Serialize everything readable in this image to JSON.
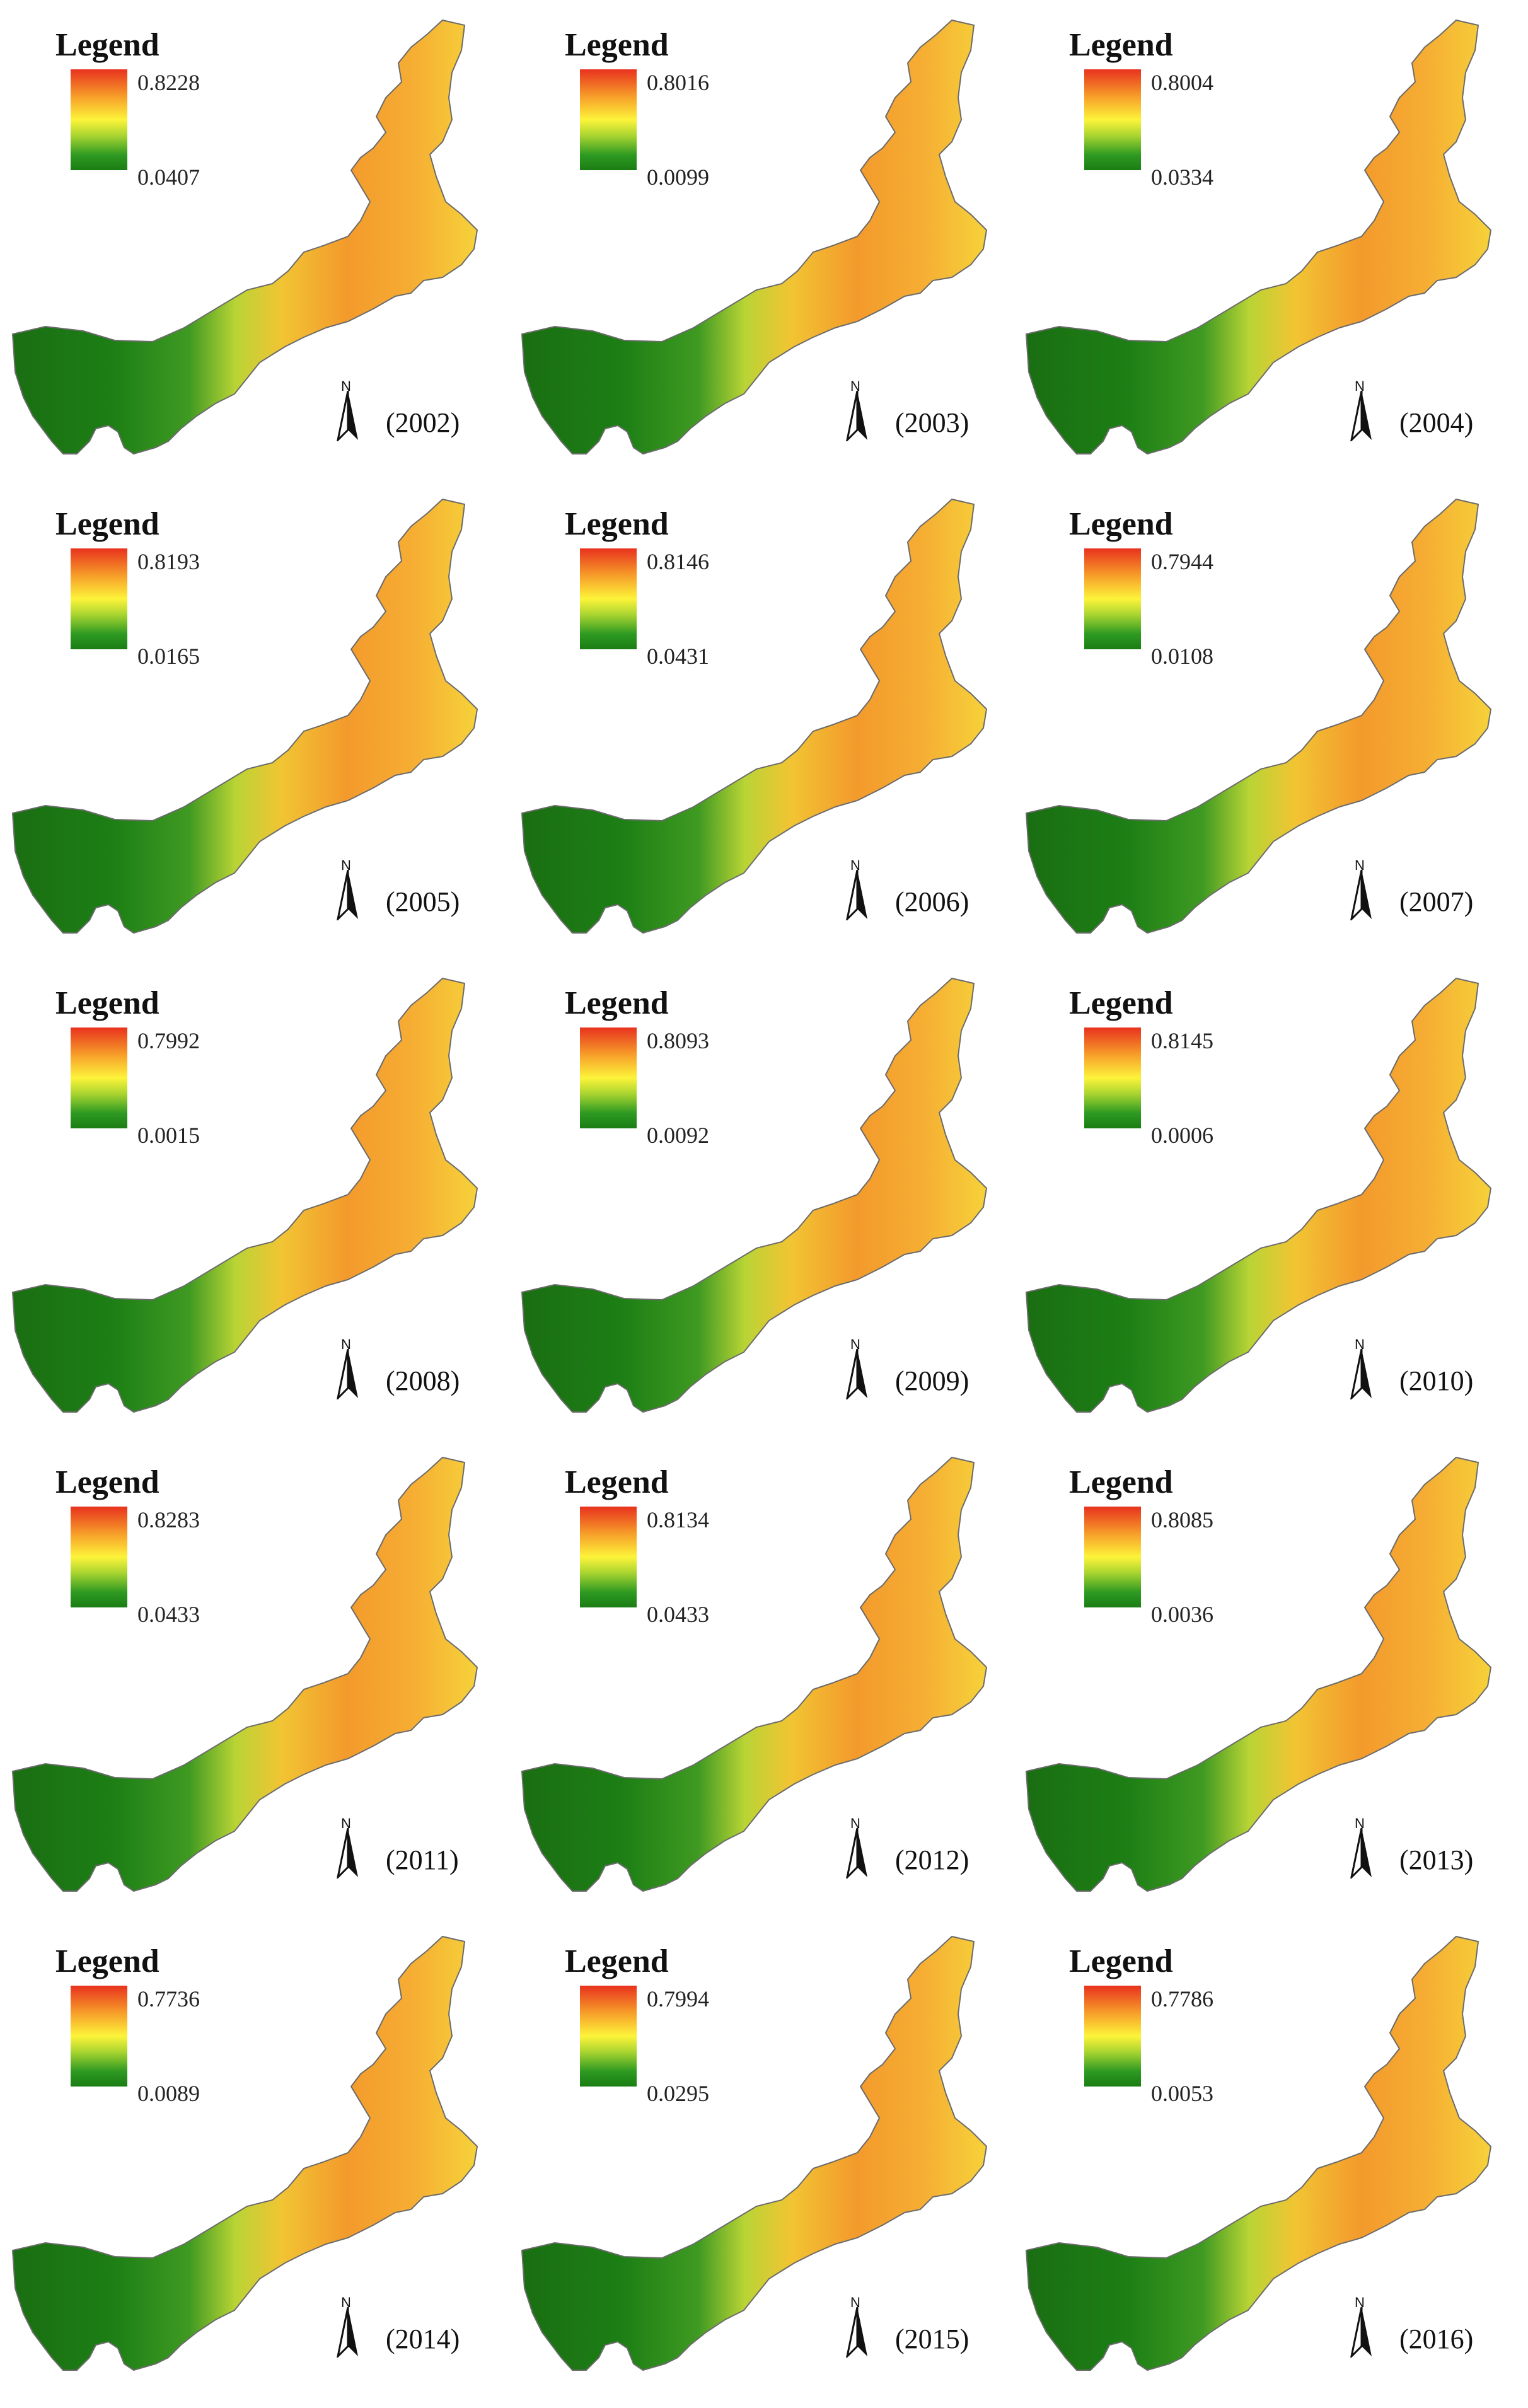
{
  "legend_title": "Legend",
  "colors": {
    "high": "#e8321e",
    "mid_high": "#f7a22a",
    "mid": "#fdf43a",
    "mid_low": "#a8d430",
    "low": "#1a7d14",
    "border": "#6b6b6b"
  },
  "north_label": "N",
  "panels": [
    {
      "year": "(2002)",
      "max": "0.8228",
      "min": "0.0407"
    },
    {
      "year": "(2003)",
      "max": "0.8016",
      "min": "0.0099"
    },
    {
      "year": "(2004)",
      "max": "0.8004",
      "min": "0.0334"
    },
    {
      "year": "(2005)",
      "max": "0.8193",
      "min": "0.0165"
    },
    {
      "year": "(2006)",
      "max": "0.8146",
      "min": "0.0431"
    },
    {
      "year": "(2007)",
      "max": "0.7944",
      "min": "0.0108"
    },
    {
      "year": "(2008)",
      "max": "0.7992",
      "min": "0.0015"
    },
    {
      "year": "(2009)",
      "max": "0.8093",
      "min": "0.0092"
    },
    {
      "year": "(2010)",
      "max": "0.8145",
      "min": "0.0006"
    },
    {
      "year": "(2011)",
      "max": "0.8283",
      "min": "0.0433"
    },
    {
      "year": "(2012)",
      "max": "0.8134",
      "min": "0.0433"
    },
    {
      "year": "(2013)",
      "max": "0.8085",
      "min": "0.0036"
    },
    {
      "year": "(2014)",
      "max": "0.7736",
      "min": "0.0089"
    },
    {
      "year": "(2015)",
      "max": "0.7994",
      "min": "0.0295"
    },
    {
      "year": "(2016)",
      "max": "0.7786",
      "min": "0.0053"
    }
  ]
}
